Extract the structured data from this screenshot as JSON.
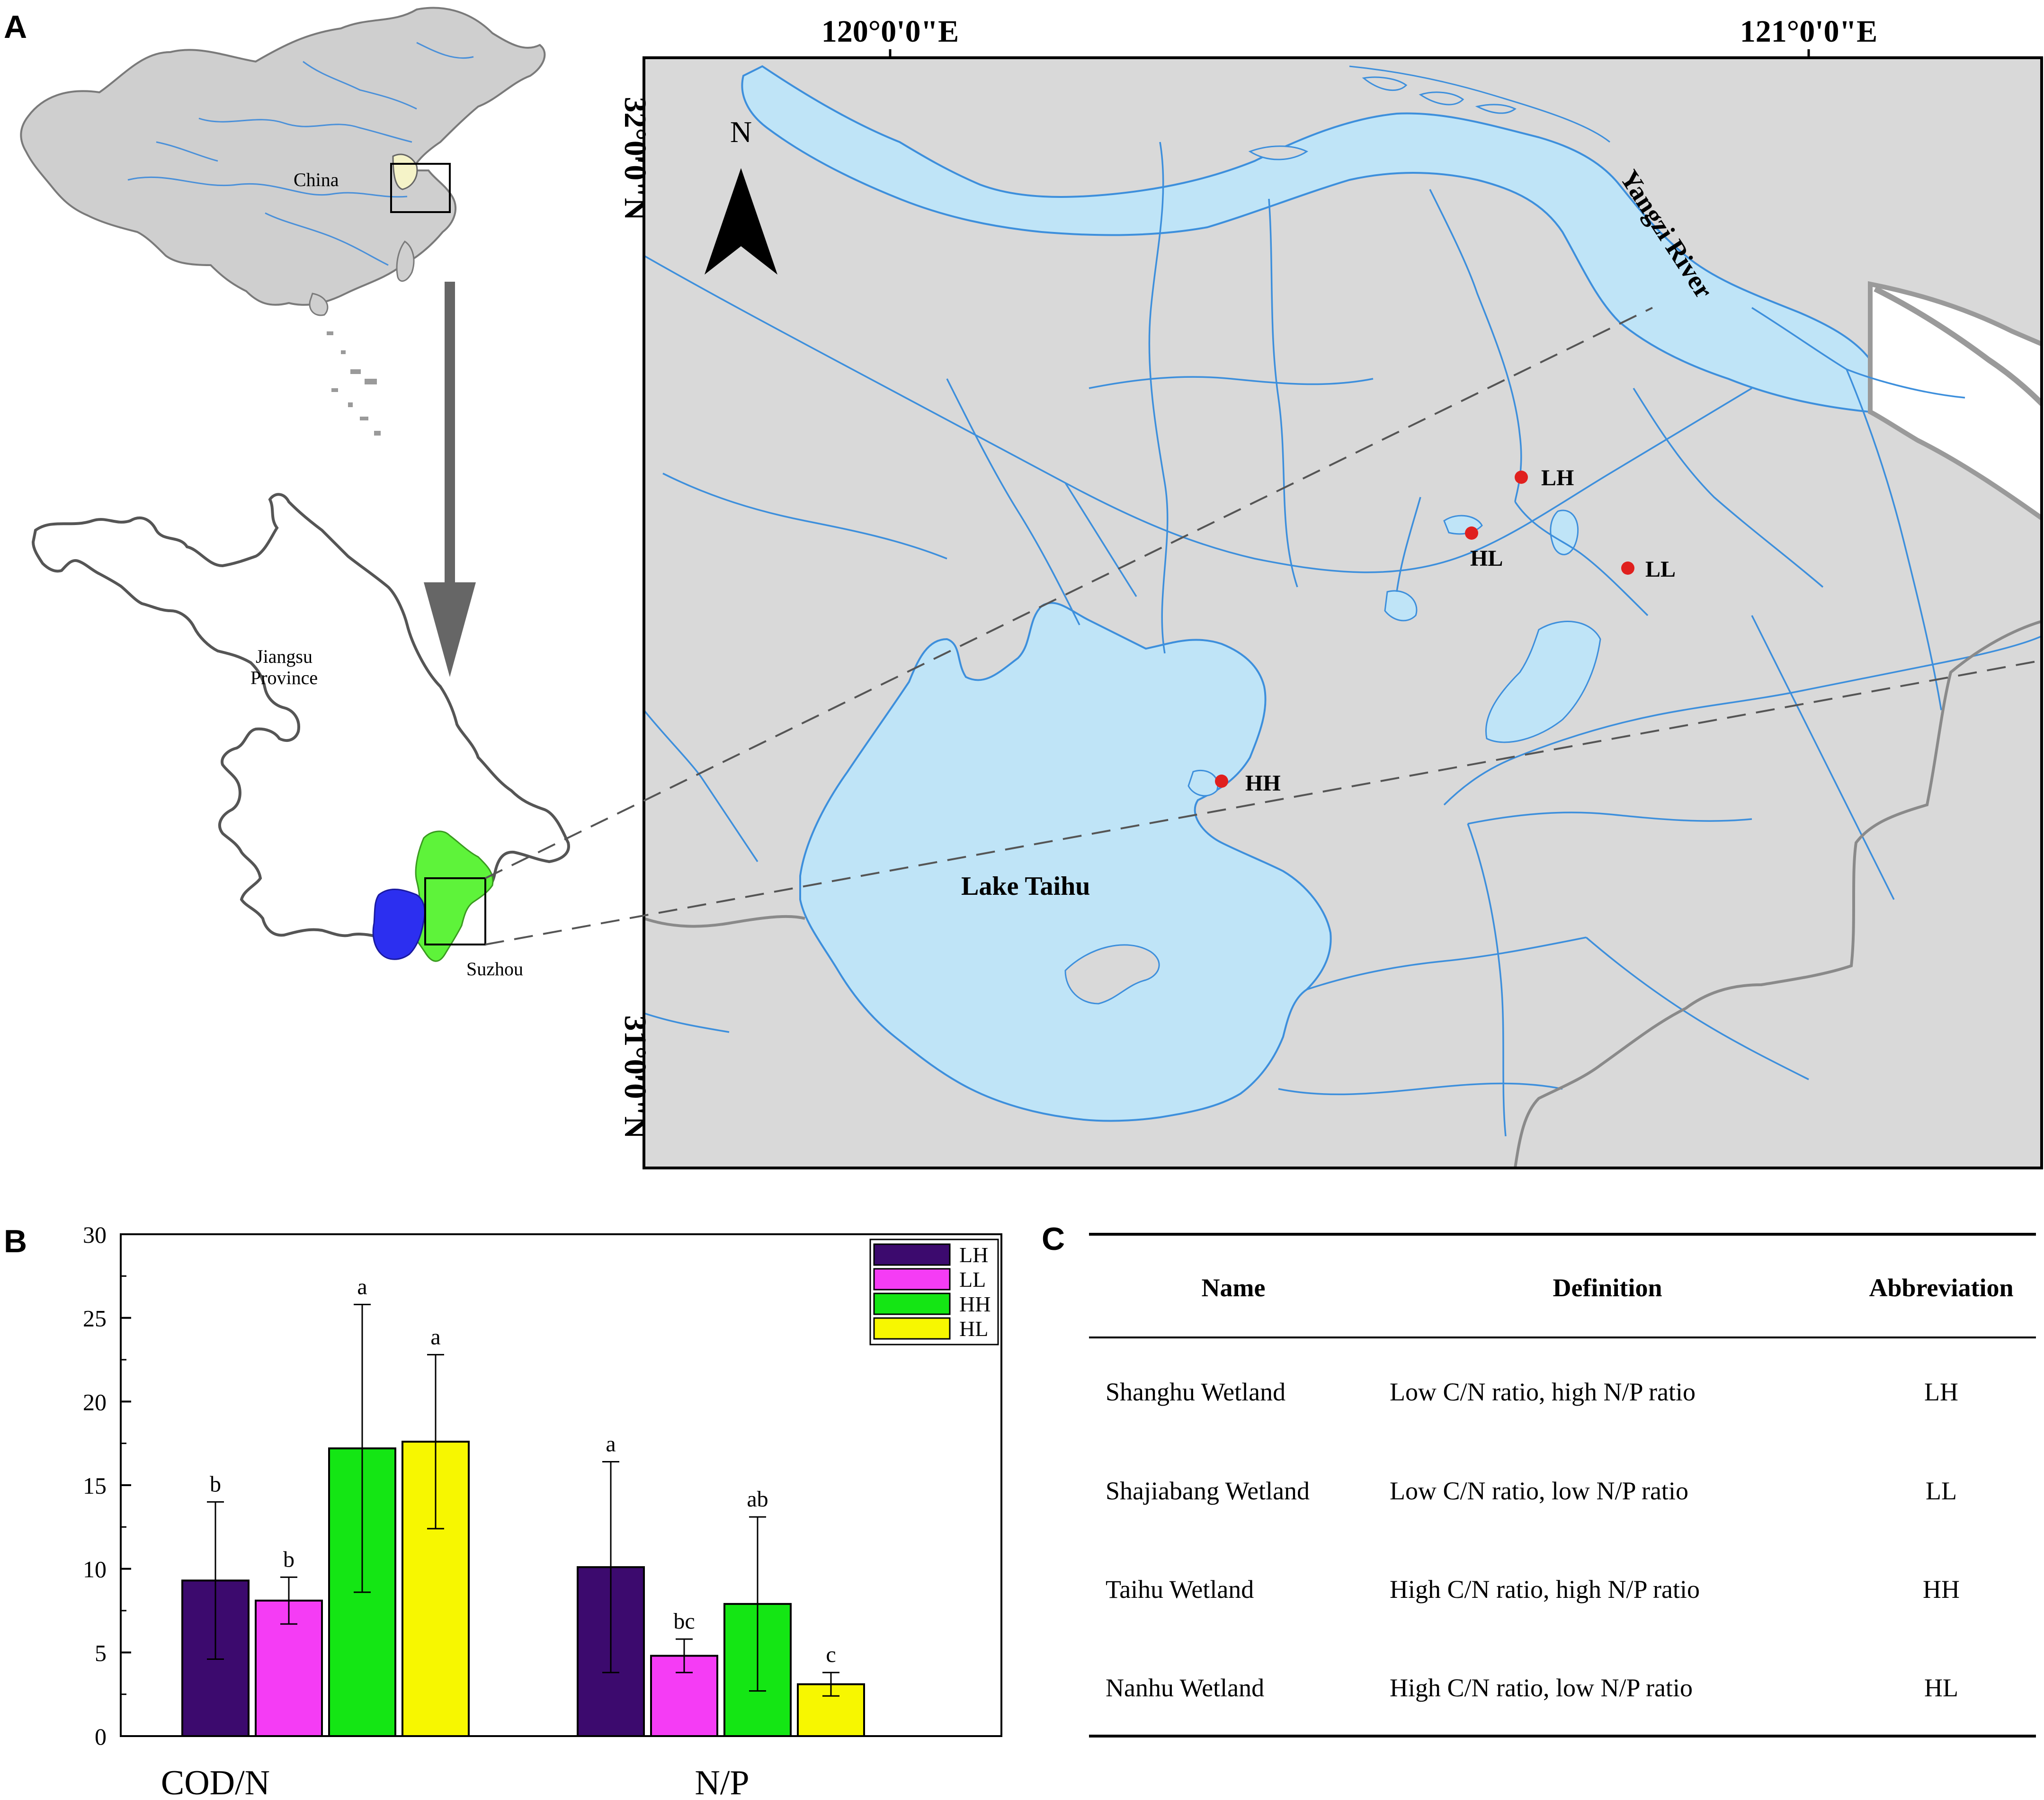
{
  "panel_labels": {
    "a": "A",
    "b": "B",
    "c": "C"
  },
  "panel_a": {
    "china_label": "China",
    "province_label_line1": "Jiangsu",
    "province_label_line2": "Province",
    "city_label": "Suzhou",
    "coords": {
      "lon1": "120°0'0\"E",
      "lon2": "121°0'0\"E",
      "lat1": "32°0'0\"N",
      "lat2": "31°0'0\"N"
    },
    "north_label": "N",
    "river_label": "Yangzi River",
    "lake_label": "Lake Taihu",
    "sites": [
      {
        "label": "LH"
      },
      {
        "label": "HL"
      },
      {
        "label": "LL"
      },
      {
        "label": "HH"
      }
    ],
    "colors": {
      "water": "#bfe4f7",
      "water_line": "#3d8fdc",
      "land": "#d9d9d9",
      "site": "#e0201e",
      "suzhou": "#5ef33a",
      "lake_inset": "#2c2ff0"
    }
  },
  "chart_data": {
    "type": "bar",
    "categories": [
      "COD/N",
      "N/P"
    ],
    "ylim": [
      0,
      30
    ],
    "yticks": [
      "0",
      "5",
      "10",
      "15",
      "20",
      "25",
      "30"
    ],
    "series": [
      {
        "name": "LH",
        "color": "#3c0a6e",
        "values": [
          9.3,
          10.1
        ],
        "errors": [
          4.7,
          6.3
        ],
        "letters": [
          "b",
          "a"
        ]
      },
      {
        "name": "LL",
        "color": "#f53cf5",
        "values": [
          8.1,
          4.8
        ],
        "errors": [
          1.4,
          1.0
        ],
        "letters": [
          "b",
          "bc"
        ]
      },
      {
        "name": "HH",
        "color": "#14e614",
        "values": [
          17.2,
          7.9
        ],
        "errors": [
          8.6,
          5.2
        ],
        "letters": [
          "a",
          "ab"
        ]
      },
      {
        "name": "HL",
        "color": "#f7f700",
        "values": [
          17.6,
          3.1
        ],
        "errors": [
          5.2,
          0.7
        ],
        "letters": [
          "a",
          "c"
        ]
      }
    ],
    "legend": "top-right"
  },
  "table": {
    "headers": [
      "Name",
      "Definition",
      "Abbreviation"
    ],
    "rows": [
      [
        "Shanghu Wetland",
        "Low C/N ratio, high N/P ratio",
        "LH"
      ],
      [
        "Shajiabang Wetland",
        "Low C/N ratio, low N/P ratio",
        "LL"
      ],
      [
        "Taihu Wetland",
        "High C/N ratio, high N/P ratio",
        "HH"
      ],
      [
        "Nanhu Wetland",
        "High C/N ratio, low N/P ratio",
        "HL"
      ]
    ]
  }
}
